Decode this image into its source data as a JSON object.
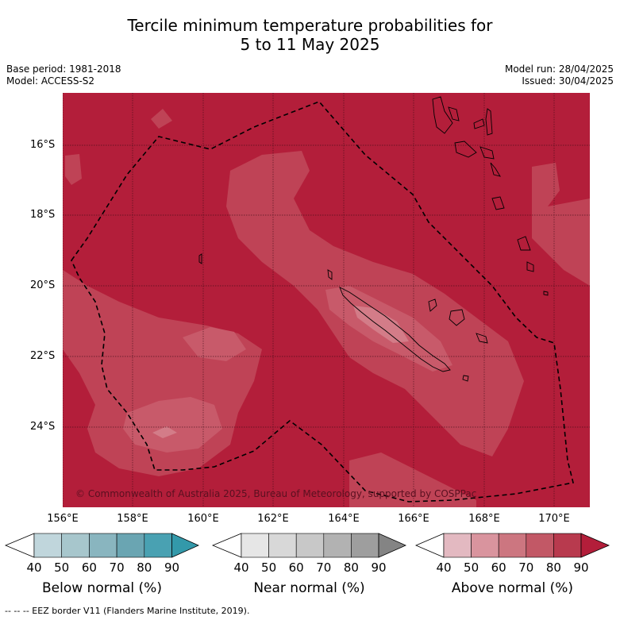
{
  "title_line1": "Tercile minimum temperature probabilities for",
  "title_line2": "5 to 11 May 2025",
  "base_period": "Base period: 1981-2018",
  "model": "Model: ACCESS-S2",
  "model_run": "Model run: 28/04/2025",
  "issued": "Issued: 30/04/2025",
  "copyright": "© Commonwealth of Australia 2025, Bureau of Meteorology, supported by COSPPac",
  "lat_labels": [
    "16°S",
    "18°S",
    "20°S",
    "22°S",
    "24°S"
  ],
  "lon_labels": [
    "156°E",
    "158°E",
    "160°E",
    "162°E",
    "164°E",
    "166°E",
    "168°E",
    "170°E"
  ],
  "colorbars": [
    {
      "title": "Below normal (%)",
      "ticks": [
        "40",
        "50",
        "60",
        "70",
        "80",
        "90"
      ],
      "colors": [
        "#c0d6dc",
        "#a7c6cc",
        "#89b5bf",
        "#6aa5b2",
        "#49a1b2",
        "#3399aa"
      ]
    },
    {
      "title": "Near normal (%)",
      "ticks": [
        "40",
        "50",
        "60",
        "70",
        "80",
        "90"
      ],
      "colors": [
        "#e6e6e6",
        "#d8d8d8",
        "#c8c8c8",
        "#b2b2b2",
        "#9e9e9e",
        "#848484"
      ]
    },
    {
      "title": "Above normal (%)",
      "ticks": [
        "40",
        "50",
        "60",
        "70",
        "80",
        "90"
      ],
      "colors": [
        "#e3b9c1",
        "#d9949e",
        "#cc7680",
        "#c25866",
        "#b83a4e",
        "#b31e3a"
      ]
    }
  ],
  "footnote": "--  --  -- EEZ border V11 (Flanders Marine Institute, 2019).",
  "colors": {
    "above_80_90": "#b31e3a",
    "above_70_80": "#bf4356",
    "above_60_70": "#c85a6a",
    "above_50_60": "#d37c88"
  }
}
